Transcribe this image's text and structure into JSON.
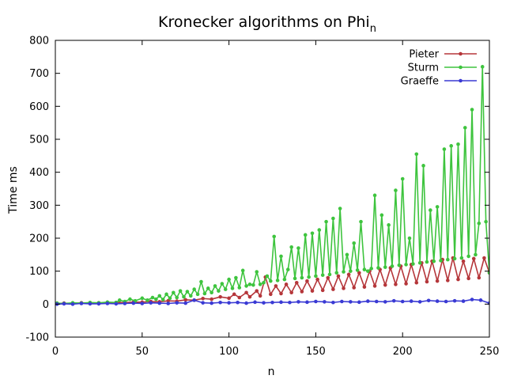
{
  "chart_data": {
    "type": "line",
    "title": "Kronecker algorithms on Phi",
    "title_subscript": "n",
    "xlabel": "n",
    "ylabel": "Time ms",
    "xlim": [
      0,
      250
    ],
    "ylim": [
      -100,
      800
    ],
    "xticks": [
      0,
      50,
      100,
      150,
      200,
      250
    ],
    "yticks": [
      -100,
      0,
      100,
      200,
      300,
      400,
      500,
      600,
      700,
      800
    ],
    "grid": false,
    "legend_position": "top-right",
    "series": [
      {
        "name": "Pieter",
        "color": "#b5363a",
        "x": [
          1,
          5,
          10,
          15,
          20,
          25,
          30,
          35,
          40,
          45,
          50,
          55,
          60,
          65,
          70,
          75,
          80,
          85,
          90,
          95,
          100,
          103,
          106,
          110,
          112,
          116,
          118,
          121,
          124,
          127,
          130,
          133,
          136,
          139,
          142,
          145,
          148,
          151,
          154,
          157,
          160,
          163,
          166,
          169,
          172,
          175,
          178,
          181,
          184,
          187,
          190,
          193,
          196,
          199,
          202,
          205,
          208,
          211,
          214,
          217,
          220,
          223,
          226,
          229,
          232,
          235,
          238,
          241,
          244,
          247,
          250
        ],
        "values": [
          2,
          3,
          2,
          4,
          3,
          4,
          4,
          5,
          5,
          6,
          6,
          8,
          7,
          10,
          9,
          13,
          12,
          17,
          15,
          22,
          18,
          30,
          20,
          35,
          22,
          40,
          25,
          82,
          30,
          55,
          32,
          60,
          35,
          65,
          38,
          70,
          40,
          75,
          42,
          80,
          45,
          85,
          48,
          90,
          50,
          95,
          52,
          100,
          55,
          105,
          58,
          110,
          60,
          115,
          62,
          120,
          65,
          125,
          68,
          130,
          70,
          135,
          72,
          140,
          75,
          130,
          78,
          138,
          80,
          140,
          95
        ]
      },
      {
        "name": "Sturm",
        "color": "#3ec43e",
        "x": [
          1,
          5,
          10,
          15,
          20,
          25,
          30,
          35,
          37,
          40,
          43,
          46,
          50,
          53,
          56,
          58,
          60,
          62,
          64,
          66,
          68,
          70,
          72,
          74,
          76,
          78,
          80,
          82,
          84,
          86,
          88,
          90,
          92,
          94,
          96,
          98,
          100,
          102,
          104,
          106,
          108,
          110,
          112,
          114,
          116,
          118,
          120,
          122,
          124,
          126,
          128,
          130,
          132,
          134,
          136,
          138,
          140,
          142,
          144,
          146,
          148,
          150,
          152,
          154,
          156,
          158,
          160,
          162,
          164,
          166,
          168,
          170,
          172,
          174,
          176,
          178,
          180,
          182,
          184,
          186,
          188,
          190,
          192,
          194,
          196,
          198,
          200,
          202,
          204,
          206,
          208,
          210,
          212,
          214,
          216,
          218,
          220,
          222,
          224,
          226,
          228,
          230,
          232,
          234,
          236,
          238,
          240,
          242,
          244,
          246,
          248,
          250
        ],
        "values": [
          3,
          2,
          4,
          3,
          5,
          4,
          6,
          5,
          12,
          8,
          15,
          10,
          18,
          12,
          20,
          15,
          25,
          14,
          30,
          18,
          35,
          20,
          40,
          22,
          38,
          25,
          45,
          30,
          68,
          32,
          48,
          35,
          55,
          40,
          62,
          45,
          75,
          48,
          80,
          50,
          102,
          55,
          60,
          58,
          98,
          60,
          65,
          85,
          70,
          205,
          72,
          145,
          75,
          105,
          173,
          78,
          170,
          80,
          210,
          82,
          215,
          85,
          225,
          88,
          250,
          90,
          260,
          95,
          290,
          98,
          150,
          100,
          185,
          103,
          250,
          105,
          100,
          108,
          330,
          110,
          270,
          112,
          240,
          115,
          345,
          118,
          380,
          120,
          200,
          122,
          455,
          125,
          420,
          128,
          285,
          130,
          295,
          132,
          470,
          135,
          480,
          138,
          485,
          140,
          535,
          145,
          590,
          150,
          245,
          720,
          250,
          95
        ]
      },
      {
        "name": "Graeffe",
        "color": "#3a3ad4",
        "x": [
          1,
          5,
          10,
          15,
          20,
          25,
          30,
          35,
          40,
          45,
          50,
          55,
          60,
          65,
          70,
          75,
          80,
          85,
          90,
          95,
          100,
          105,
          110,
          115,
          120,
          125,
          130,
          135,
          140,
          145,
          150,
          155,
          160,
          165,
          170,
          175,
          180,
          185,
          190,
          195,
          200,
          205,
          210,
          215,
          220,
          225,
          230,
          235,
          240,
          245,
          250
        ],
        "values": [
          0,
          1,
          0,
          2,
          1,
          1,
          2,
          1,
          2,
          3,
          2,
          4,
          3,
          2,
          4,
          3,
          12,
          4,
          3,
          5,
          4,
          5,
          3,
          6,
          4,
          5,
          6,
          5,
          7,
          6,
          8,
          7,
          5,
          8,
          7,
          6,
          9,
          8,
          7,
          10,
          8,
          9,
          7,
          11,
          9,
          8,
          10,
          9,
          14,
          12,
          3
        ]
      }
    ]
  }
}
